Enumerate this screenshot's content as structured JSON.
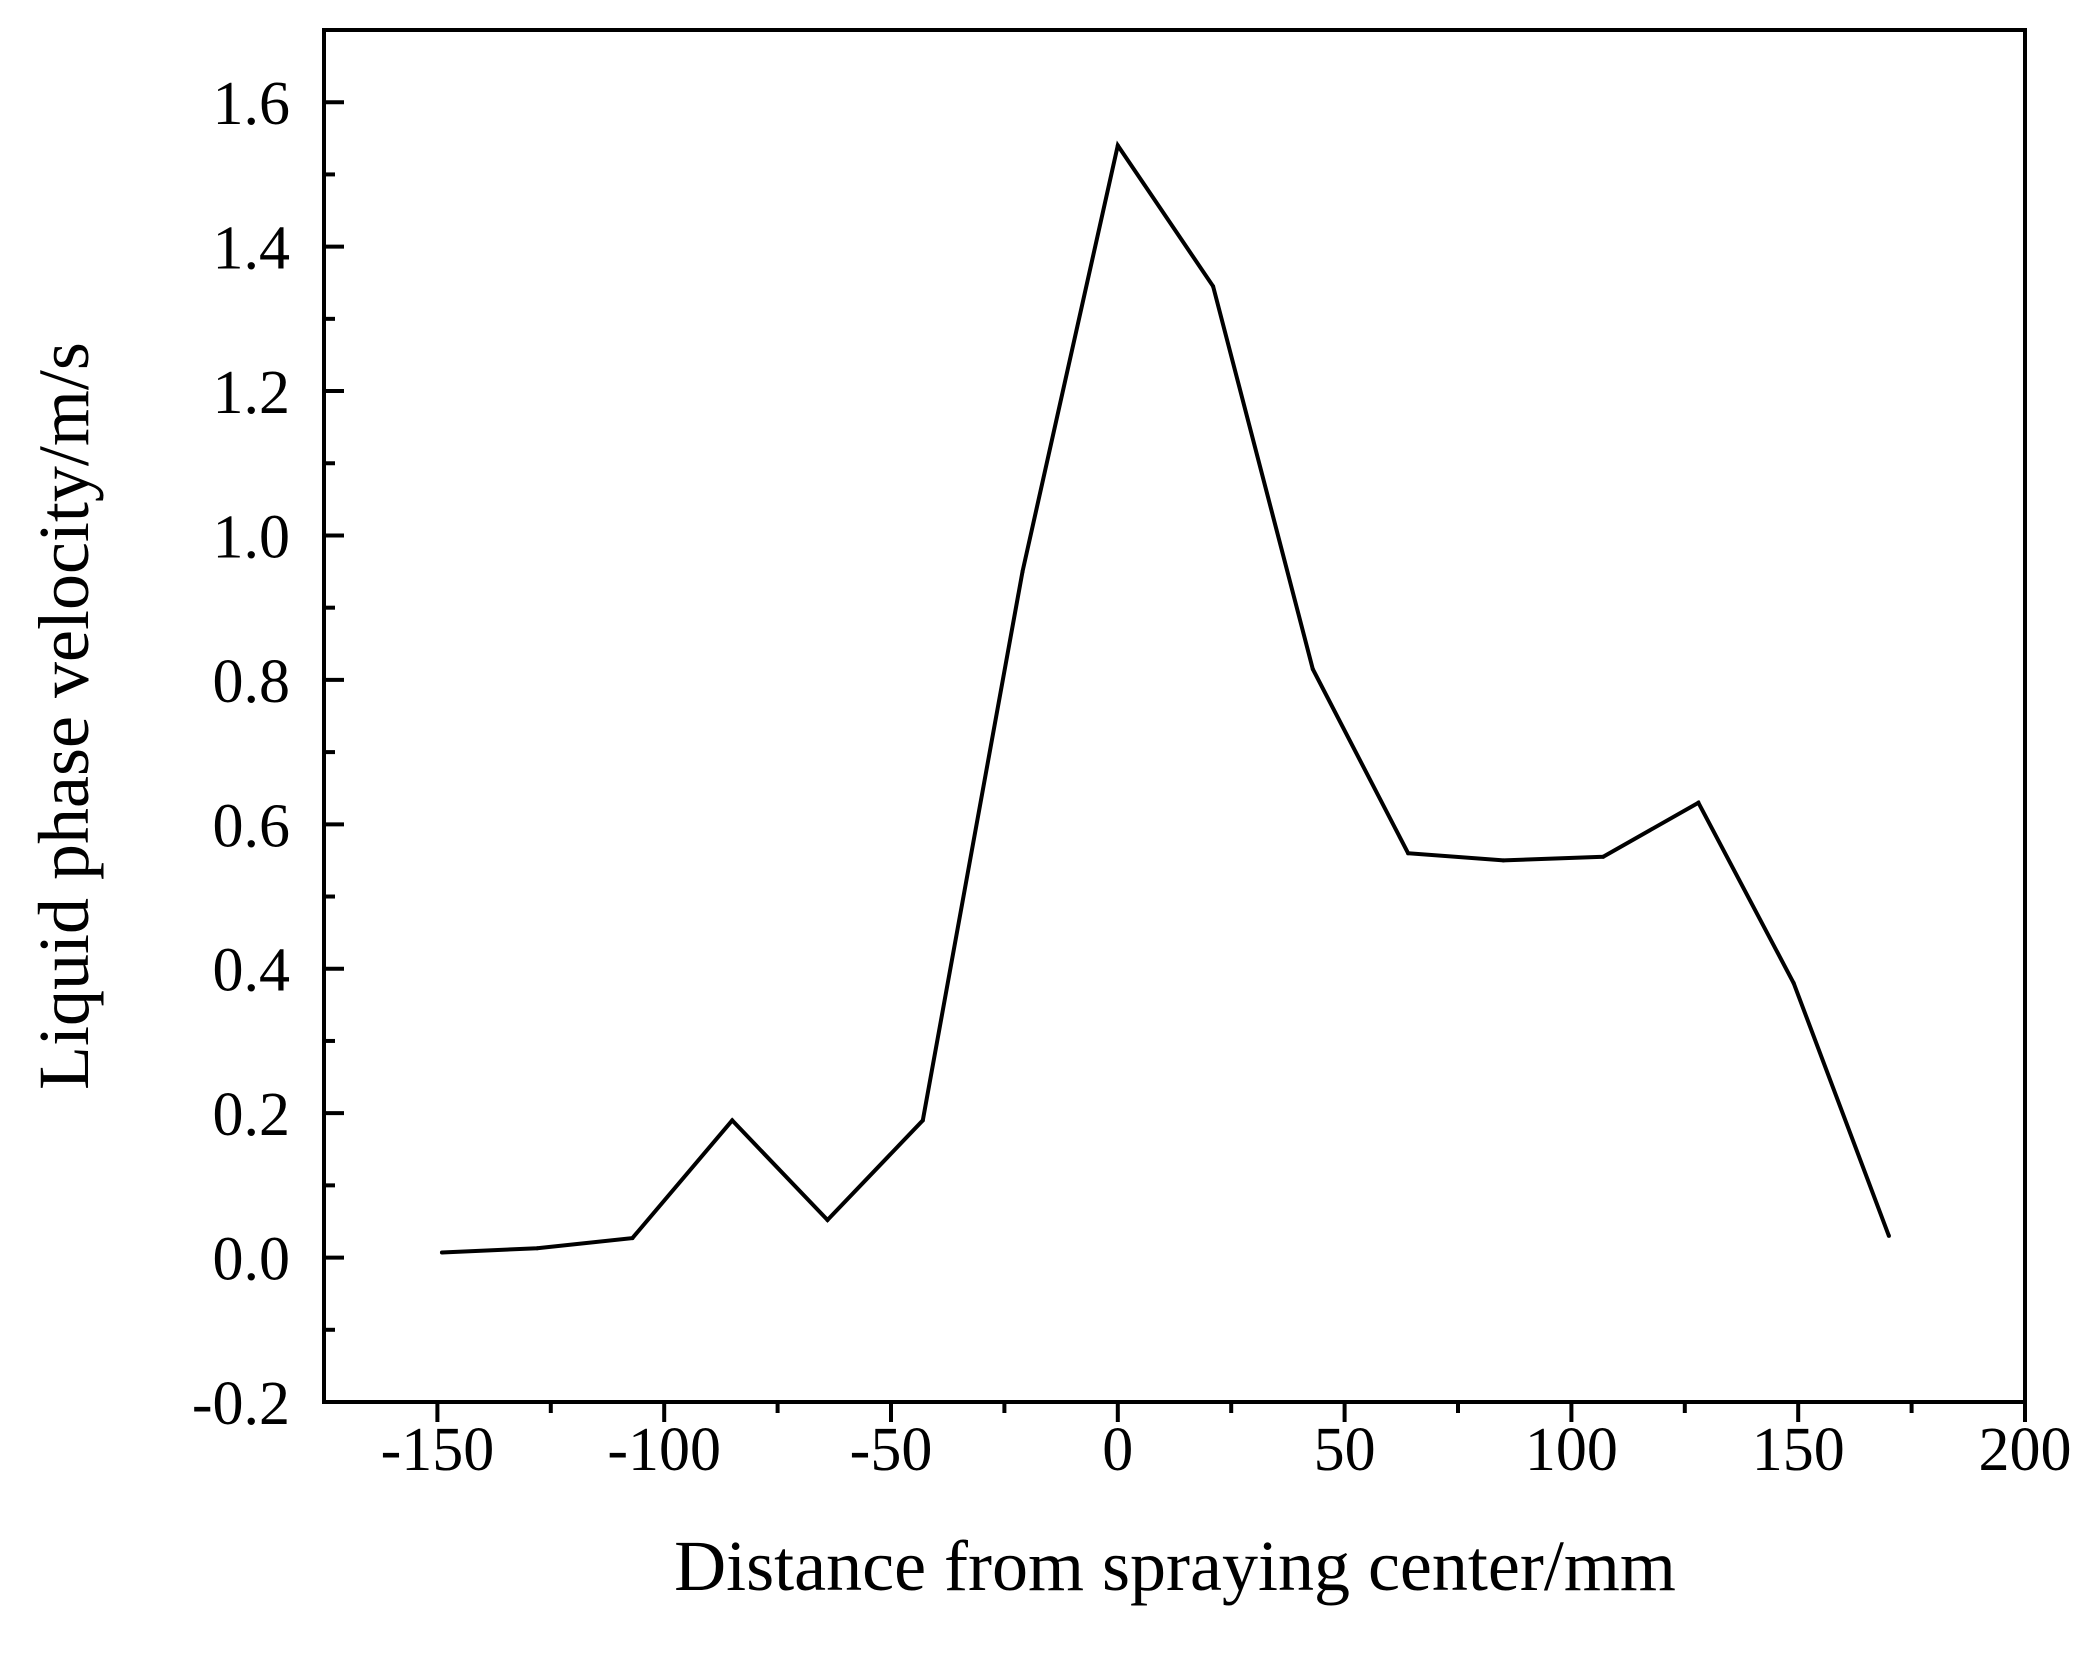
{
  "chart_data": {
    "type": "line",
    "title": "",
    "xlabel": "Distance from spraying center/mm",
    "ylabel": "Liquid phase velocity/m/s",
    "xlim": [
      -175,
      200
    ],
    "ylim": [
      -0.2,
      1.7
    ],
    "xticks": [
      -150,
      -100,
      -50,
      0,
      50,
      100,
      150,
      200
    ],
    "xtick_labels": [
      "-150",
      "-100",
      "-50",
      "0",
      "50",
      "100",
      "150",
      "200"
    ],
    "yticks": [
      -0.2,
      0.0,
      0.2,
      0.4,
      0.6,
      0.8,
      1.0,
      1.2,
      1.4,
      1.6
    ],
    "ytick_labels": [
      "-0.2",
      "0.0",
      "0.2",
      "0.4",
      "0.6",
      "0.8",
      "1.0",
      "1.2",
      "1.4",
      "1.6"
    ],
    "grid": false,
    "legend": "none",
    "line_color": "#000000",
    "series": [
      {
        "x": [
          -149,
          -128,
          -107,
          -85,
          -64,
          -43,
          -21,
          0,
          21,
          43,
          64,
          85,
          107,
          128,
          149,
          170
        ],
        "values": [
          0.007,
          0.013,
          0.027,
          0.19,
          0.052,
          0.19,
          0.95,
          1.54,
          1.345,
          0.815,
          0.56,
          0.55,
          0.555,
          0.63,
          0.38,
          0.03
        ]
      }
    ]
  }
}
